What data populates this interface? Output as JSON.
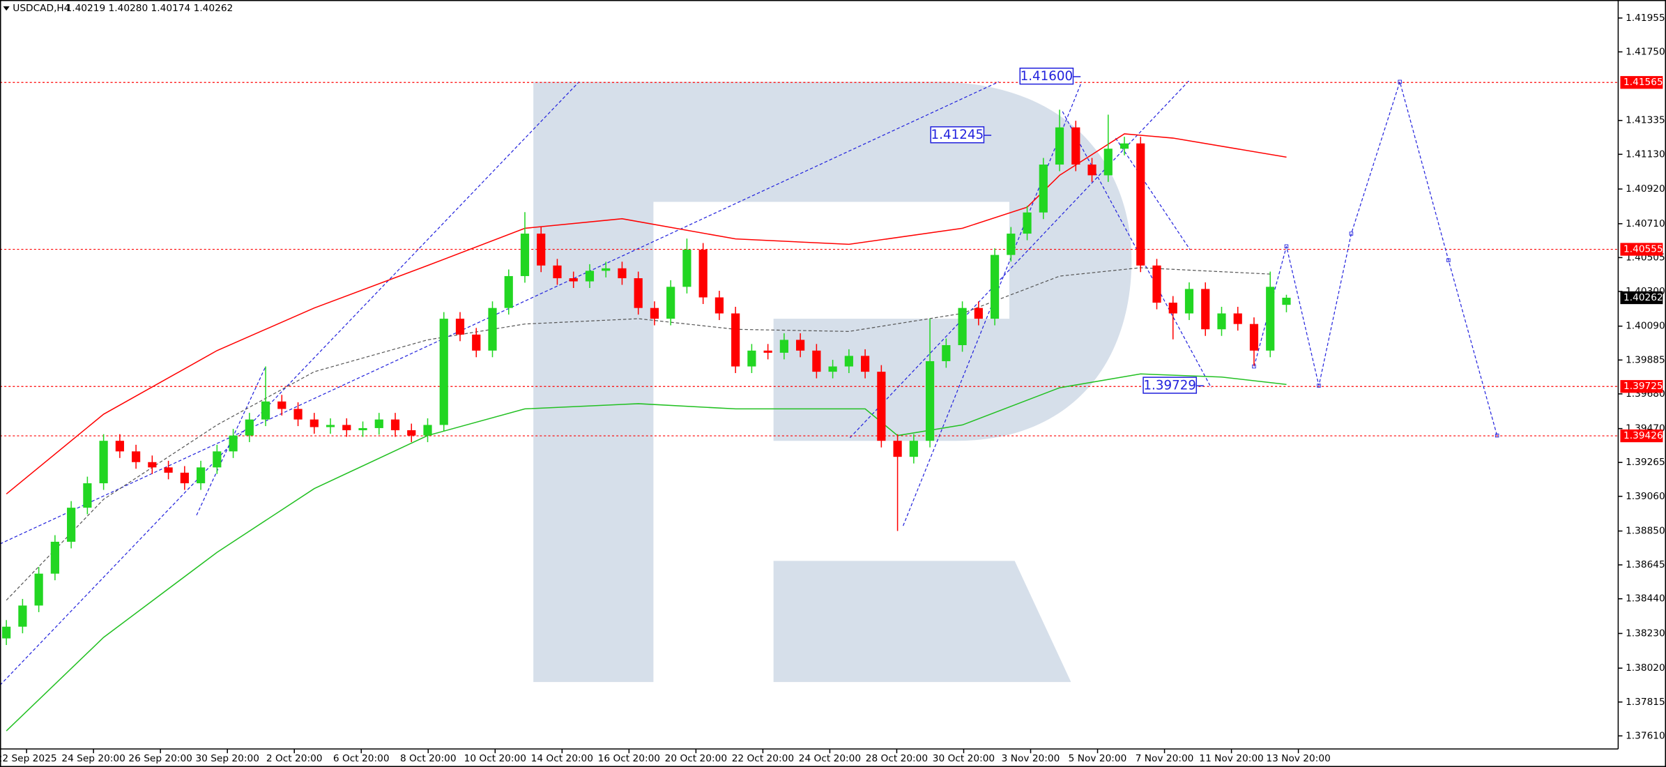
{
  "chart_data": {
    "type": "candlestick",
    "title": "USDCAD,H4",
    "subtitle": "1.40219 1.40280 1.40174 1.40262",
    "colors": {
      "up": "#22d622",
      "down": "#ff0000"
    },
    "ylim": [
      1.37531,
      1.42064
    ],
    "yticks": [
      1.41955,
      {
        "value": 1.4175,
        "label": "1.41750"
      },
      1.41335,
      {
        "value": 1.4113,
        "label": "1.41130"
      },
      {
        "value": 1.4092,
        "label": "1.40920"
      },
      {
        "value": 1.4071,
        "label": "1.40710"
      },
      1.40505,
      {
        "value": 1.403,
        "label": "1.40300"
      },
      {
        "value": 1.4009,
        "label": "1.40090"
      },
      1.39885,
      {
        "value": 1.3968,
        "label": "1.39680"
      },
      {
        "value": 1.3947,
        "label": "1.39470"
      },
      1.39265,
      {
        "value": 1.3906,
        "label": "1.39060"
      },
      {
        "value": 1.3885,
        "label": "1.38850"
      },
      1.38645,
      {
        "value": 1.3844,
        "label": "1.38440"
      },
      {
        "value": 1.3823,
        "label": "1.38230"
      },
      {
        "value": 1.3802,
        "label": "1.38020"
      },
      1.37815,
      {
        "value": 1.3761,
        "label": "1.37610"
      }
    ],
    "xlabels": [
      "22 Sep 2025",
      "24 Sep 20:00",
      "26 Sep 20:00",
      "30 Sep 20:00",
      "2 Oct 20:00",
      "6 Oct 20:00",
      "8 Oct 20:00",
      "10 Oct 20:00",
      "14 Oct 20:00",
      "16 Oct 20:00",
      "20 Oct 20:00",
      "22 Oct 20:00",
      "24 Oct 20:00",
      "28 Oct 20:00",
      "30 Oct 20:00",
      "3 Nov 20:00",
      "5 Nov 20:00",
      "7 Nov 20:00",
      "11 Nov 20:00",
      "13 Nov 20:00"
    ],
    "open": [
      1.382,
      1.38271,
      1.38399,
      1.38592,
      1.38785,
      1.38991,
      1.39139,
      1.39396,
      1.39332,
      1.39267,
      1.39235,
      1.39203,
      1.39139,
      1.39235,
      1.39332,
      1.39428,
      1.39525,
      1.39634,
      1.39589,
      1.39525,
      1.39479,
      1.39492,
      1.3946,
      1.39473,
      1.39525,
      1.3946,
      1.39428,
      1.39492,
      1.40135,
      1.40039,
      1.39942,
      1.402,
      1.40393,
      1.4065,
      1.40457,
      1.4038,
      1.40361,
      1.40425,
      1.4044,
      1.4038,
      1.402,
      1.40135,
      1.40328,
      1.40553,
      1.40264,
      1.40167,
      1.39846,
      1.39942,
      1.39929,
      1.40007,
      1.39942,
      1.39814,
      1.39846,
      1.3991,
      1.39814,
      1.39396,
      1.39299,
      1.39396,
      1.39878,
      1.39975,
      1.402,
      1.40135,
      1.40521,
      1.4065,
      1.40778,
      1.41068,
      1.41293,
      1.41068,
      1.41003,
      1.41164,
      1.41196,
      1.40457,
      1.40232,
      1.40167,
      1.40315,
      1.40071,
      1.40167,
      1.40103,
      1.39942,
      1.40219
    ],
    "high": [
      1.38311,
      1.38439,
      1.38632,
      1.38825,
      1.39031,
      1.39179,
      1.39436,
      1.39436,
      1.39372,
      1.39307,
      1.39275,
      1.39243,
      1.39275,
      1.39372,
      1.39468,
      1.39565,
      1.39846,
      1.39674,
      1.39629,
      1.39565,
      1.39532,
      1.39532,
      1.39513,
      1.39565,
      1.39565,
      1.395,
      1.39532,
      1.40175,
      1.40175,
      1.40079,
      1.4024,
      1.40433,
      1.4078,
      1.4069,
      1.40497,
      1.4042,
      1.40465,
      1.4048,
      1.4048,
      1.4042,
      1.4024,
      1.40368,
      1.4062,
      1.40593,
      1.40304,
      1.40207,
      1.39982,
      1.39982,
      1.40047,
      1.40047,
      1.39982,
      1.39886,
      1.3995,
      1.3995,
      1.39854,
      1.39436,
      1.39436,
      1.40135,
      1.40015,
      1.4024,
      1.4024,
      1.40561,
      1.4069,
      1.40818,
      1.41108,
      1.414,
      1.41333,
      1.41108,
      1.4137,
      1.41236,
      1.41236,
      1.40497,
      1.40272,
      1.40355,
      1.40355,
      1.40207,
      1.40207,
      1.40143,
      1.4042,
      1.4028
    ],
    "low": [
      1.3816,
      1.38231,
      1.38359,
      1.38552,
      1.38745,
      1.38951,
      1.39099,
      1.39292,
      1.39227,
      1.39195,
      1.39163,
      1.39099,
      1.39099,
      1.39195,
      1.39292,
      1.39388,
      1.39485,
      1.39549,
      1.39485,
      1.39439,
      1.39439,
      1.3942,
      1.3942,
      1.39433,
      1.3942,
      1.39388,
      1.39388,
      1.39452,
      1.39999,
      1.39902,
      1.39902,
      1.4016,
      1.40353,
      1.40417,
      1.4034,
      1.40321,
      1.40321,
      1.40385,
      1.4034,
      1.4016,
      1.40095,
      1.40095,
      1.40288,
      1.40224,
      1.40127,
      1.39806,
      1.39806,
      1.39889,
      1.39889,
      1.39902,
      1.39774,
      1.39774,
      1.39806,
      1.39774,
      1.39356,
      1.3885,
      1.39259,
      1.39356,
      1.39838,
      1.39935,
      1.40095,
      1.40095,
      1.40481,
      1.4061,
      1.40738,
      1.41028,
      1.41028,
      1.40963,
      1.40963,
      1.41124,
      1.40417,
      1.40192,
      1.4001,
      1.40127,
      1.40031,
      1.40031,
      1.40063,
      1.3985,
      1.39902,
      1.40174
    ],
    "close": [
      1.38271,
      1.38399,
      1.38592,
      1.38785,
      1.38991,
      1.39139,
      1.39396,
      1.39332,
      1.39267,
      1.39235,
      1.39203,
      1.39139,
      1.39235,
      1.39332,
      1.39428,
      1.39525,
      1.39634,
      1.39589,
      1.39525,
      1.39479,
      1.39492,
      1.3946,
      1.39473,
      1.39525,
      1.3946,
      1.39428,
      1.39492,
      1.40135,
      1.40039,
      1.39942,
      1.402,
      1.40393,
      1.4065,
      1.40457,
      1.4038,
      1.40361,
      1.40425,
      1.4044,
      1.4038,
      1.402,
      1.40135,
      1.40328,
      1.40553,
      1.40264,
      1.40167,
      1.39846,
      1.39942,
      1.39929,
      1.40007,
      1.39942,
      1.39814,
      1.39846,
      1.3991,
      1.39814,
      1.39396,
      1.39299,
      1.39396,
      1.39878,
      1.39975,
      1.402,
      1.40135,
      1.40521,
      1.4065,
      1.40778,
      1.41068,
      1.41293,
      1.41068,
      1.41003,
      1.41164,
      1.41196,
      1.40457,
      1.40232,
      1.40167,
      1.40315,
      1.40071,
      1.40167,
      1.40103,
      1.39942,
      1.40328,
      1.40262
    ],
    "lines": [
      {
        "color": "#ff0000",
        "dash": false,
        "x": [
          0,
          6,
          13,
          19,
          26,
          32,
          38,
          45,
          52,
          59,
          63,
          65,
          69,
          72,
          79
        ],
        "values": [
          1.39074,
          1.39557,
          1.39942,
          1.402,
          1.40457,
          1.40682,
          1.4074,
          1.40618,
          1.40585,
          1.40682,
          1.4081,
          1.41003,
          1.41254,
          1.41228,
          1.41113
        ]
      },
      {
        "color": "#22c022",
        "dash": false,
        "x": [
          0,
          6,
          13,
          19,
          26,
          32,
          39,
          45,
          53,
          55,
          59,
          65,
          70,
          75,
          79
        ],
        "values": [
          1.3764,
          1.38206,
          1.38721,
          1.39107,
          1.39428,
          1.39589,
          1.39621,
          1.39589,
          1.39589,
          1.39428,
          1.39492,
          1.39717,
          1.39801,
          1.39782,
          1.39737
        ]
      },
      {
        "color": "#555555",
        "dash": true,
        "x": [
          0,
          6,
          13,
          19,
          26,
          32,
          39,
          45,
          52,
          59,
          65,
          70,
          78
        ],
        "values": [
          1.38431,
          1.39042,
          1.39492,
          1.39814,
          1.40007,
          1.40103,
          1.40135,
          1.40071,
          1.40058,
          1.40167,
          1.40393,
          1.40444,
          1.40405
        ]
      },
      {
        "color": "#2222dd",
        "dash": true,
        "x": [
          77,
          79,
          81,
          83,
          86,
          89,
          92
        ],
        "values": [
          1.39846,
          1.40573,
          1.3973,
          1.4065,
          1.41569,
          1.40489,
          1.39428
        ]
      }
    ],
    "levels": [
      1.41565,
      1.40555,
      1.39725,
      1.39426
    ],
    "level_color": "#ff0000",
    "annotations": [
      {
        "value": 1.416,
        "label": "1.41600"
      },
      {
        "value": 1.41245,
        "label": "1.41245"
      },
      {
        "value": 1.39729,
        "label": "1.39729"
      }
    ],
    "last_price": 1.40262
  }
}
